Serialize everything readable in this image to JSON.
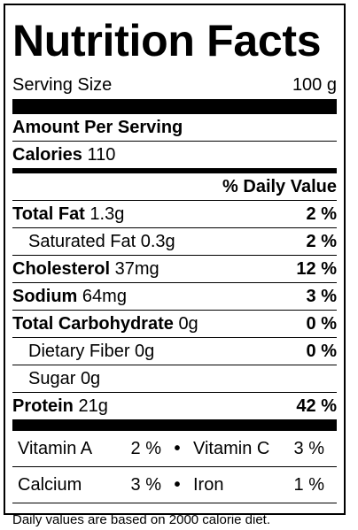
{
  "title": "Nutrition Facts",
  "serving": {
    "label": "Serving Size",
    "value": "100 g"
  },
  "amount_per_serving": "Amount Per Serving",
  "calories": {
    "label": "Calories",
    "value": "110"
  },
  "daily_value_header": "% Daily Value",
  "nutrients": [
    {
      "name": "Total Fat",
      "amount": "1.3g",
      "dv": "2 %"
    },
    {
      "name": "Saturated Fat",
      "amount": "0.3g",
      "dv": "2 %"
    },
    {
      "name": "Cholesterol",
      "amount": "37mg",
      "dv": "12 %"
    },
    {
      "name": "Sodium",
      "amount": "64mg",
      "dv": "3 %"
    },
    {
      "name": "Total Carbohydrate",
      "amount": "0g",
      "dv": "0 %"
    },
    {
      "name": "Dietary Fiber",
      "amount": "0g",
      "dv": "0 %"
    },
    {
      "name": "Sugar",
      "amount": "0g",
      "dv": ""
    },
    {
      "name": "Protein",
      "amount": "21g",
      "dv": "42 %"
    }
  ],
  "vitamins": [
    {
      "name": "Vitamin A",
      "value": "2 %"
    },
    {
      "name": "Vitamin C",
      "value": "3 %"
    },
    {
      "name": "Calcium",
      "value": "3 %"
    },
    {
      "name": "Iron",
      "value": "1 %"
    }
  ],
  "separator": "•",
  "footnote": "Daily values are based on 2000 calorie diet."
}
